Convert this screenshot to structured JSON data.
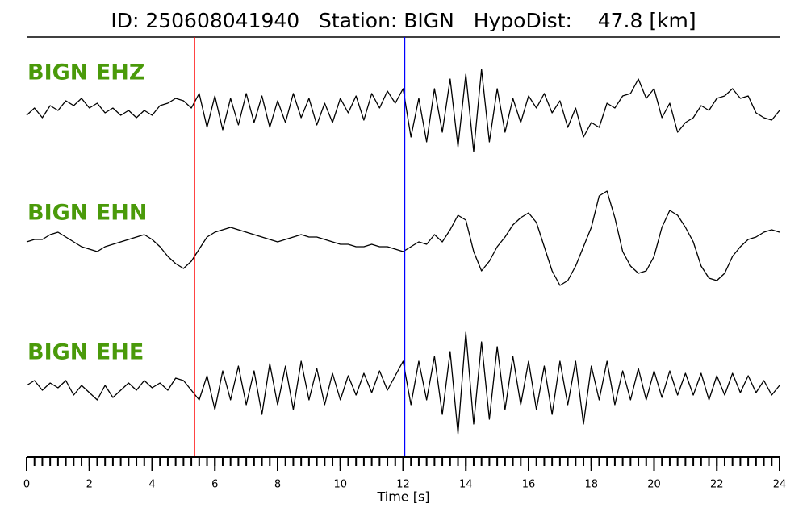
{
  "chart_data": {
    "type": "line",
    "title": "ID: 250608041940   Station: BIGN   HypoDist:    47.8 [km]",
    "xlabel": "Time [s]",
    "xlim": [
      0,
      24
    ],
    "xticks": [
      0,
      2,
      4,
      6,
      8,
      10,
      12,
      14,
      16,
      18,
      20,
      22,
      24
    ],
    "xminorticks": [
      0,
      0.25,
      0.5,
      0.75,
      1,
      1.25,
      1.5,
      1.75,
      2,
      2.25,
      2.5,
      2.75,
      3,
      3.25,
      3.5,
      3.75,
      4,
      4.25,
      4.5,
      4.75,
      5,
      5.25,
      5.5,
      5.75,
      6,
      6.25,
      6.5,
      6.75,
      7,
      7.25,
      7.5,
      7.75,
      8,
      8.25,
      8.5,
      8.75,
      9,
      9.25,
      9.5,
      9.75,
      10,
      10.25,
      10.5,
      10.75,
      11,
      11.25,
      11.5,
      11.75,
      12,
      12.25,
      12.5,
      12.75,
      13,
      13.25,
      13.5,
      13.75,
      14,
      14.25,
      14.5,
      14.75,
      15,
      15.25,
      15.5,
      15.75,
      16,
      16.25,
      16.5,
      16.75,
      17,
      17.25,
      17.5,
      17.75,
      18,
      18.25,
      18.5,
      18.75,
      19,
      19.25,
      19.5,
      19.75,
      20,
      20.25,
      20.5,
      20.75,
      21,
      21.25,
      21.5,
      21.75,
      22,
      22.25,
      22.5,
      22.75,
      23,
      23.25,
      23.5,
      23.75,
      24
    ],
    "x": [
      0,
      0.25,
      0.5,
      0.75,
      1,
      1.25,
      1.5,
      1.75,
      2,
      2.25,
      2.5,
      2.75,
      3,
      3.25,
      3.5,
      3.75,
      4,
      4.25,
      4.5,
      4.75,
      5,
      5.25,
      5.5,
      5.75,
      6,
      6.25,
      6.5,
      6.75,
      7,
      7.25,
      7.5,
      7.75,
      8,
      8.25,
      8.5,
      8.75,
      9,
      9.25,
      9.5,
      9.75,
      10,
      10.25,
      10.5,
      10.75,
      11,
      11.25,
      11.5,
      11.75,
      12,
      12.25,
      12.5,
      12.75,
      13,
      13.25,
      13.5,
      13.75,
      14,
      14.25,
      14.5,
      14.75,
      15,
      15.25,
      15.5,
      15.75,
      16,
      16.25,
      16.5,
      16.75,
      17,
      17.25,
      17.5,
      17.75,
      18,
      18.25,
      18.5,
      18.75,
      19,
      19.25,
      19.5,
      19.75,
      20,
      20.25,
      20.5,
      20.75,
      21,
      21.25,
      21.5,
      21.75,
      22,
      22.25,
      22.5,
      22.75,
      23,
      23.25,
      23.5,
      23.75,
      24
    ],
    "ylim": [
      -1,
      1
    ],
    "label_color": "#4a9a0a",
    "vlines": [
      {
        "x": 5.35,
        "color": "#ff0000"
      },
      {
        "x": 12.05,
        "color": "#0000ff"
      }
    ],
    "series": [
      {
        "name": "BIGN EHZ",
        "color": "#000000",
        "values": [
          -0.05,
          0.1,
          -0.1,
          0.15,
          0.05,
          0.25,
          0.15,
          0.3,
          0.1,
          0.2,
          0.0,
          0.1,
          -0.05,
          0.05,
          -0.1,
          0.05,
          -0.05,
          0.15,
          0.2,
          0.3,
          0.25,
          0.1,
          0.4,
          -0.3,
          0.35,
          -0.35,
          0.3,
          -0.25,
          0.4,
          -0.2,
          0.35,
          -0.3,
          0.25,
          -0.2,
          0.4,
          -0.1,
          0.3,
          -0.25,
          0.2,
          -0.2,
          0.3,
          0.0,
          0.35,
          -0.15,
          0.4,
          0.1,
          0.45,
          0.2,
          0.5,
          -0.5,
          0.3,
          -0.6,
          0.5,
          -0.4,
          0.7,
          -0.7,
          0.8,
          -0.8,
          0.9,
          -0.6,
          0.5,
          -0.4,
          0.3,
          -0.2,
          0.35,
          0.1,
          0.4,
          0.0,
          0.25,
          -0.3,
          0.1,
          -0.5,
          -0.2,
          -0.3,
          0.2,
          0.1,
          0.35,
          0.4,
          0.7,
          0.3,
          0.5,
          -0.1,
          0.2,
          -0.4,
          -0.2,
          -0.1,
          0.15,
          0.05,
          0.3,
          0.35,
          0.5,
          0.3,
          0.35,
          0.0,
          -0.1,
          -0.15,
          0.05
        ]
      },
      {
        "name": "BIGN EHN",
        "color": "#000000",
        "values": [
          0.0,
          0.05,
          0.05,
          0.15,
          0.2,
          0.1,
          0.0,
          -0.1,
          -0.15,
          -0.2,
          -0.1,
          -0.05,
          0.0,
          0.05,
          0.1,
          0.15,
          0.05,
          -0.1,
          -0.3,
          -0.45,
          -0.55,
          -0.4,
          -0.15,
          0.1,
          0.2,
          0.25,
          0.3,
          0.25,
          0.2,
          0.15,
          0.1,
          0.05,
          0.0,
          0.05,
          0.1,
          0.15,
          0.1,
          0.1,
          0.05,
          0.0,
          -0.05,
          -0.05,
          -0.1,
          -0.1,
          -0.05,
          -0.1,
          -0.1,
          -0.15,
          -0.2,
          -0.1,
          0.0,
          -0.05,
          0.15,
          0.0,
          0.25,
          0.55,
          0.45,
          -0.2,
          -0.6,
          -0.4,
          -0.1,
          0.1,
          0.35,
          0.5,
          0.6,
          0.4,
          -0.1,
          -0.6,
          -0.9,
          -0.8,
          -0.5,
          -0.1,
          0.3,
          0.95,
          1.05,
          0.5,
          -0.2,
          -0.5,
          -0.65,
          -0.6,
          -0.3,
          0.3,
          0.65,
          0.55,
          0.3,
          0.0,
          -0.5,
          -0.75,
          -0.8,
          -0.65,
          -0.3,
          -0.1,
          0.05,
          0.1,
          0.2,
          0.25,
          0.2
        ]
      },
      {
        "name": "BIGN EHE",
        "color": "#000000",
        "values": [
          0.0,
          0.1,
          -0.1,
          0.05,
          -0.05,
          0.1,
          -0.2,
          0.0,
          -0.15,
          -0.3,
          0.0,
          -0.25,
          -0.1,
          0.05,
          -0.1,
          0.1,
          -0.05,
          0.05,
          -0.1,
          0.15,
          0.1,
          -0.1,
          -0.3,
          0.2,
          -0.5,
          0.3,
          -0.3,
          0.4,
          -0.4,
          0.3,
          -0.6,
          0.45,
          -0.4,
          0.4,
          -0.5,
          0.5,
          -0.3,
          0.35,
          -0.4,
          0.25,
          -0.3,
          0.2,
          -0.2,
          0.25,
          -0.15,
          0.3,
          -0.1,
          0.2,
          0.5,
          -0.4,
          0.5,
          -0.3,
          0.6,
          -0.6,
          0.7,
          -1.0,
          1.1,
          -0.8,
          0.9,
          -0.7,
          0.8,
          -0.5,
          0.6,
          -0.4,
          0.5,
          -0.5,
          0.4,
          -0.6,
          0.5,
          -0.4,
          0.5,
          -0.8,
          0.4,
          -0.3,
          0.5,
          -0.4,
          0.3,
          -0.3,
          0.35,
          -0.3,
          0.3,
          -0.25,
          0.3,
          -0.2,
          0.25,
          -0.2,
          0.25,
          -0.3,
          0.2,
          -0.2,
          0.25,
          -0.15,
          0.2,
          -0.15,
          0.1,
          -0.2,
          0.0
        ]
      }
    ]
  }
}
